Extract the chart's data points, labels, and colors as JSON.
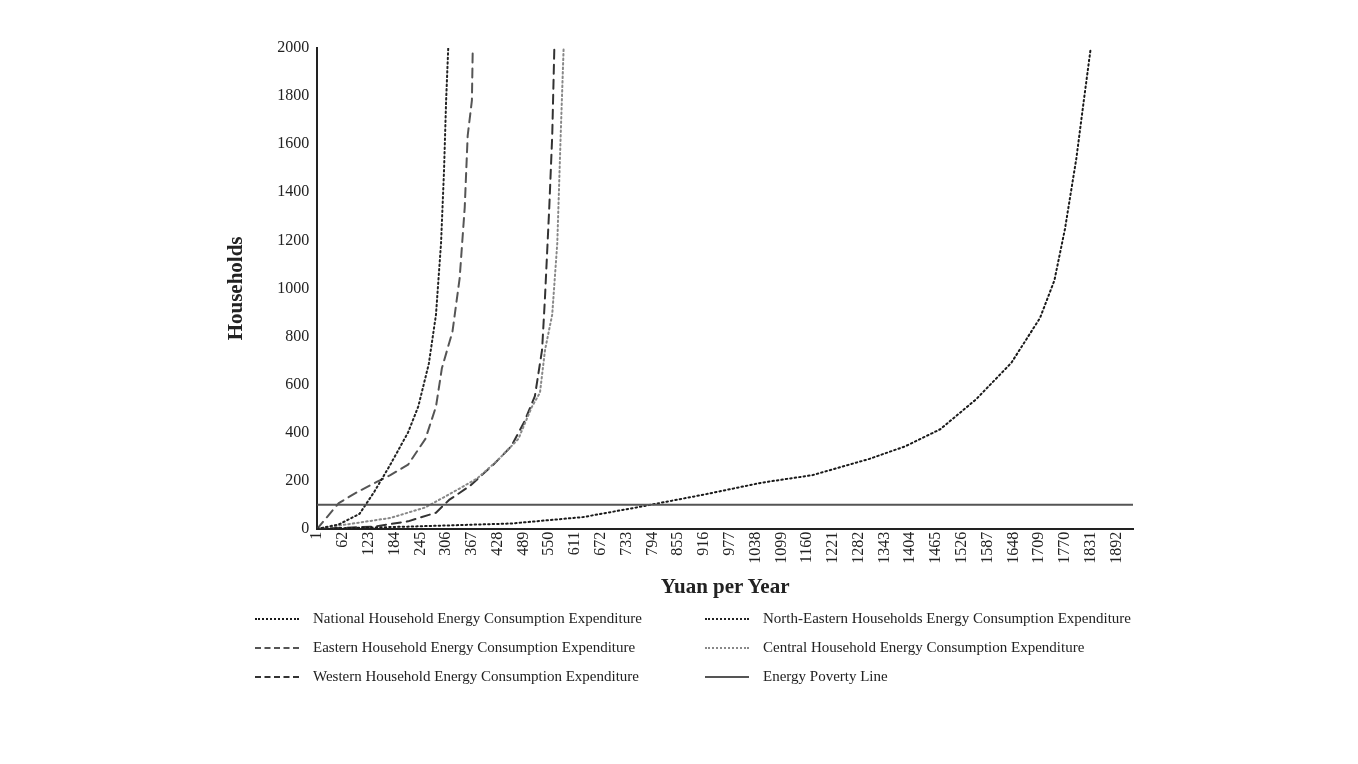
{
  "chart_data": {
    "type": "line",
    "xlabel": "Yuan per Year",
    "ylabel": "Households",
    "xlim": [
      1,
      1931
    ],
    "xticks": [
      1,
      62,
      123,
      184,
      245,
      306,
      367,
      428,
      489,
      550,
      611,
      672,
      733,
      794,
      855,
      916,
      977,
      1038,
      1099,
      1160,
      1221,
      1282,
      1343,
      1404,
      1465,
      1526,
      1587,
      1648,
      1709,
      1770,
      1831,
      1892
    ],
    "ylim": [
      0,
      2000
    ],
    "yticks": [
      0,
      200,
      400,
      600,
      800,
      1000,
      1200,
      1400,
      1600,
      1800,
      2000
    ],
    "grid": false,
    "legend": "bottom",
    "marker": "none",
    "series": [
      {
        "name": "National Household Energy Consumption Expenditure",
        "color": "#1a1a1a",
        "line_style": "dotted",
        "x": [
          1,
          216,
          460,
          631,
          757,
          918,
          1053,
          1172,
          1306,
          1392,
          1475,
          1560,
          1643,
          1711,
          1745,
          1770,
          1797,
          1814,
          1831
        ],
        "values": [
          0,
          9,
          22,
          49,
          89,
          143,
          192,
          223,
          290,
          343,
          414,
          539,
          690,
          877,
          1033,
          1247,
          1541,
          1773,
          2000
        ]
      },
      {
        "name": "North-Eastern Households Energy Consumption Expenditure",
        "color": "#222222",
        "line_style": "dotted",
        "x": [
          1,
          52,
          101,
          135,
          174,
          216,
          240,
          265,
          282,
          294,
          301,
          306,
          311
        ],
        "values": [
          0,
          18,
          62,
          151,
          267,
          401,
          508,
          686,
          891,
          1189,
          1488,
          1782,
          2000
        ]
      },
      {
        "name": "Eastern Household Energy Consumption Expenditure",
        "color": "#555555",
        "line_style": "dashed",
        "x": [
          1,
          52,
          94,
          143,
          174,
          216,
          257,
          282,
          296,
          321,
          338,
          350,
          357,
          367,
          369
        ],
        "values": [
          0,
          107,
          151,
          196,
          223,
          267,
          374,
          508,
          668,
          820,
          1042,
          1336,
          1635,
          1782,
          2000
        ]
      },
      {
        "name": "Central Household Energy Consumption Expenditure",
        "color": "#888888",
        "line_style": "dotted",
        "x": [
          1,
          174,
          257,
          321,
          379,
          428,
          477,
          509,
          528,
          540,
          557,
          569,
          577,
          584
        ],
        "values": [
          0,
          45,
          89,
          151,
          209,
          285,
          374,
          508,
          566,
          744,
          891,
          1189,
          1635,
          2000
        ]
      },
      {
        "name": "Western Household Energy Consumption Expenditure",
        "color": "#333333",
        "line_style": "dashed",
        "x": [
          1,
          135,
          216,
          282,
          313,
          362,
          418,
          460,
          491,
          516,
          533,
          540,
          550,
          557,
          562
        ],
        "values": [
          0,
          9,
          31,
          67,
          120,
          178,
          267,
          343,
          445,
          552,
          744,
          966,
          1336,
          1635,
          2000
        ]
      }
    ],
    "ref_lines": [
      {
        "axis": "y",
        "value": 100,
        "label": "Energy Poverty Line",
        "color": "#555555",
        "line_style": "solid"
      }
    ]
  }
}
